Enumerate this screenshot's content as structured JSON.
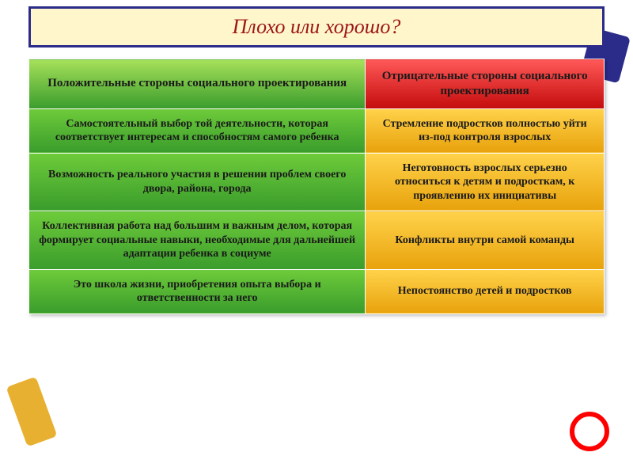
{
  "title": "Плохо или хорошо?",
  "colors": {
    "title_bg": "#fff6cc",
    "title_border": "#2b2b8a",
    "title_text": "#9c1616",
    "header_pos_bg": "linear-gradient(#a6e05a, #3a9c2c)",
    "header_neg_bg": "linear-gradient(#ff5858, #c40c0c)",
    "pos_bg": "linear-gradient(#6ecb3a, #3a9c2c)",
    "neg_bg": "linear-gradient(#ffd24a, #e8a20c)",
    "cell_text": "#1a1a1a",
    "cell_border": "#ffffff"
  },
  "table": {
    "header": {
      "positive": "Положительные стороны социального проектирования",
      "negative": "Отрицательные стороны социального проектирования"
    },
    "rows": [
      {
        "positive": "Самостоятельный выбор той деятельности, которая соответствует интересам и способностям самого ребенка",
        "negative": "Стремление подростков полностью уйти из-под контроля взрослых"
      },
      {
        "positive": "Возможность реального участия в решении проблем своего двора, района, города",
        "negative": "Неготовность взрослых серьезно относиться к детям и подросткам, к проявлению их инициативы"
      },
      {
        "positive": "Коллективная работа над большим и важным делом, которая формирует социальные навыки, необходимые для дальнейшей адаптации ребенка в социуме",
        "negative": "Конфликты внутри самой команды"
      },
      {
        "positive": "Это школа жизни, приобретения опыта выбора и ответственности за него",
        "negative": "Непостоянство детей и подростков"
      }
    ]
  },
  "layout": {
    "col_widths": [
      "50%",
      "50%"
    ],
    "font_family": "Georgia, serif",
    "title_fontsize": 26,
    "cell_fontsize": 14,
    "header_fontsize": 15
  }
}
